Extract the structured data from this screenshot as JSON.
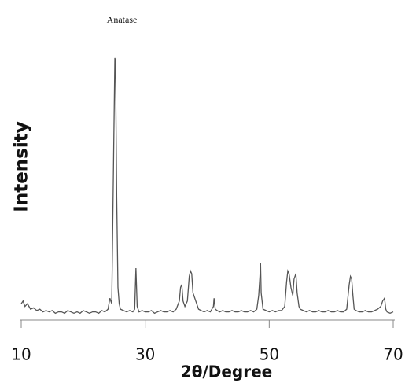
{
  "chart_data": {
    "type": "line",
    "title": "Anatase",
    "xlabel": "2θ/Degree",
    "ylabel": "Intensity",
    "x": [
      10,
      10.3,
      10.6,
      11,
      11.5,
      12,
      12.5,
      13,
      13.5,
      14,
      14.5,
      15,
      15.5,
      16,
      16.5,
      17,
      17.5,
      18,
      18.5,
      19,
      19.5,
      20,
      20.5,
      21,
      21.5,
      22,
      22.5,
      23,
      23.5,
      24,
      24.3,
      24.6,
      24.9,
      25.1,
      25.2,
      25.4,
      25.6,
      25.8,
      26,
      26.5,
      27,
      27.5,
      28,
      28.3,
      28.5,
      28.7,
      29,
      29.5,
      30,
      30.5,
      31,
      31.5,
      32,
      32.5,
      33,
      33.5,
      34,
      34.5,
      35,
      35.5,
      35.7,
      35.9,
      36.1,
      36.4,
      36.8,
      37.1,
      37.3,
      37.5,
      37.7,
      38,
      38.3,
      38.6,
      39,
      39.5,
      40,
      40.5,
      41,
      41.1,
      41.3,
      41.6,
      42,
      42.5,
      43,
      43.5,
      44,
      44.5,
      45,
      45.5,
      46,
      46.5,
      47,
      47.5,
      48,
      48.3,
      48.5,
      48.6,
      48.7,
      49,
      49.5,
      50,
      50.5,
      51,
      51.5,
      52,
      52.5,
      52.8,
      53,
      53.2,
      53.5,
      53.8,
      54,
      54.3,
      54.5,
      54.8,
      55,
      55.5,
      56,
      56.5,
      57,
      57.5,
      58,
      58.5,
      59,
      59.5,
      60,
      60.5,
      61,
      61.5,
      62,
      62.5,
      62.9,
      63.1,
      63.3,
      63.5,
      63.7,
      64,
      64.5,
      65,
      65.5,
      66,
      66.5,
      67,
      67.5,
      68,
      68.3,
      68.6,
      68.8,
      69,
      69.5,
      70
    ],
    "series": [
      {
        "color": "#555555",
        "values": [
          6,
          7,
          5,
          6,
          4,
          4.5,
          3.5,
          4,
          3,
          3.5,
          3,
          3.5,
          2.5,
          3,
          3,
          2.5,
          3.5,
          3,
          2.5,
          3,
          2.5,
          3.5,
          3,
          2.5,
          3,
          3,
          2.5,
          3.5,
          3,
          4,
          8,
          6,
          60,
          96,
          95,
          45,
          12,
          6,
          4,
          3.5,
          3,
          3.5,
          3,
          4,
          19,
          5,
          3,
          3.5,
          3,
          3,
          3.5,
          2.5,
          3,
          3.5,
          3,
          3,
          3.5,
          3,
          4,
          7,
          12,
          13,
          7,
          5,
          7,
          16,
          18,
          17,
          10,
          8,
          6,
          4,
          3.5,
          3,
          3.5,
          3,
          5,
          8,
          4,
          3.5,
          3,
          3.5,
          3,
          3,
          3.5,
          3,
          3,
          3.5,
          3,
          3,
          3.5,
          3,
          4,
          9,
          16,
          21,
          10,
          4,
          3.5,
          3,
          3.5,
          3,
          3.5,
          3.5,
          5,
          14,
          18,
          17,
          12,
          9,
          15,
          17,
          10,
          5,
          4,
          3.5,
          3,
          3.5,
          3,
          3,
          3.5,
          3,
          3,
          3.5,
          3,
          3,
          3.5,
          3,
          3,
          4,
          13,
          16,
          15,
          9,
          4,
          3.5,
          3,
          3,
          3.5,
          3,
          3,
          3.5,
          4,
          5,
          7,
          8,
          4,
          3,
          2.5,
          3
        ]
      }
    ],
    "xlim": [
      10,
      70
    ],
    "xticks": [
      10,
      30,
      50,
      70
    ],
    "ylim": [
      0,
      100
    ]
  }
}
